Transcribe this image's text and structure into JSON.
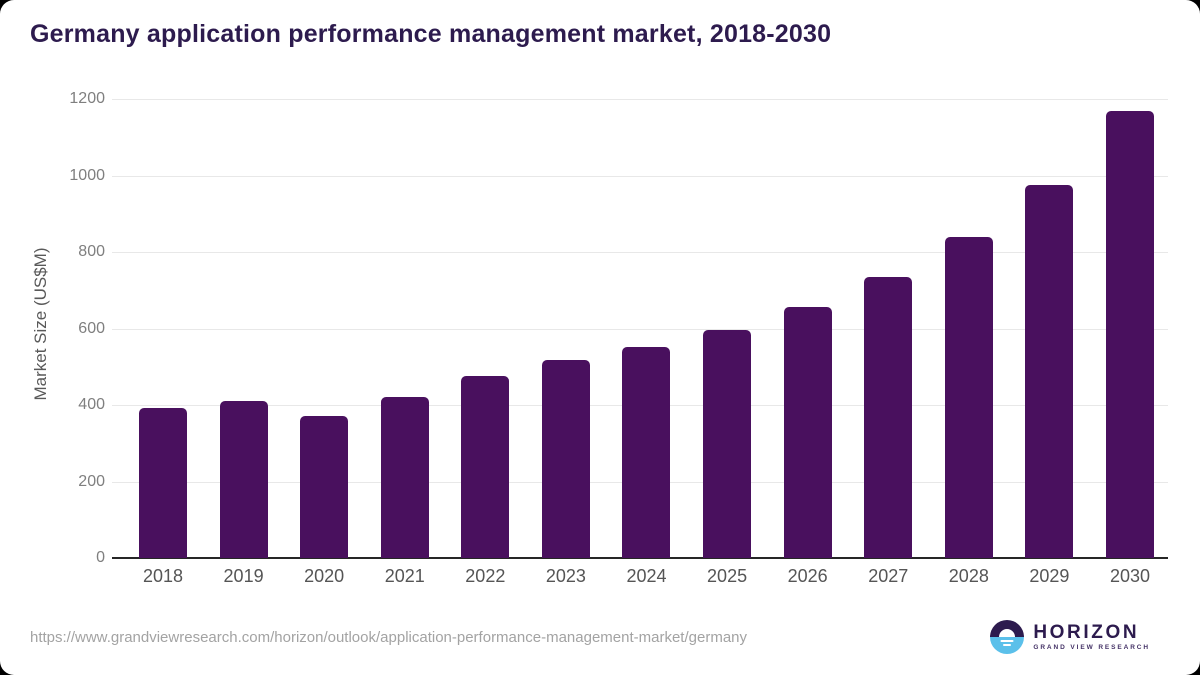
{
  "page": {
    "title": "Germany application performance management market, 2018-2030"
  },
  "footer": {
    "source_url": "https://www.grandviewresearch.com/horizon/outlook/application-performance-management-market/germany",
    "logo": {
      "brand": "HORIZON",
      "sub_brand": "GRAND VIEW RESEARCH"
    }
  },
  "colors": {
    "bar": "#49105e",
    "title_text": "#2d1b4e",
    "axis_title_text": "#595959",
    "y_tick_text": "#7f7f7f",
    "x_tick_text": "#555555",
    "gridline": "#e8e8e8",
    "baseline": "#262626",
    "url_text": "#a3a3a3",
    "logo_purple": "#2d1b4e",
    "logo_blue": "#5bc0ea"
  },
  "chart_data": {
    "type": "bar",
    "title": "Germany application performance management market, 2018-2030",
    "xlabel": "",
    "ylabel": "Market Size (US$M)",
    "categories": [
      "2018",
      "2019",
      "2020",
      "2021",
      "2022",
      "2023",
      "2024",
      "2025",
      "2026",
      "2027",
      "2028",
      "2029",
      "2030"
    ],
    "values": [
      391,
      410,
      372,
      421,
      477,
      517,
      551,
      595,
      655,
      734,
      839,
      976,
      1168
    ],
    "ylim": [
      0,
      1200
    ],
    "yticks": [
      0,
      200,
      400,
      600,
      800,
      1000,
      1200
    ],
    "grid": "horizontal",
    "legend": "none",
    "bar_color": "#49105e"
  }
}
